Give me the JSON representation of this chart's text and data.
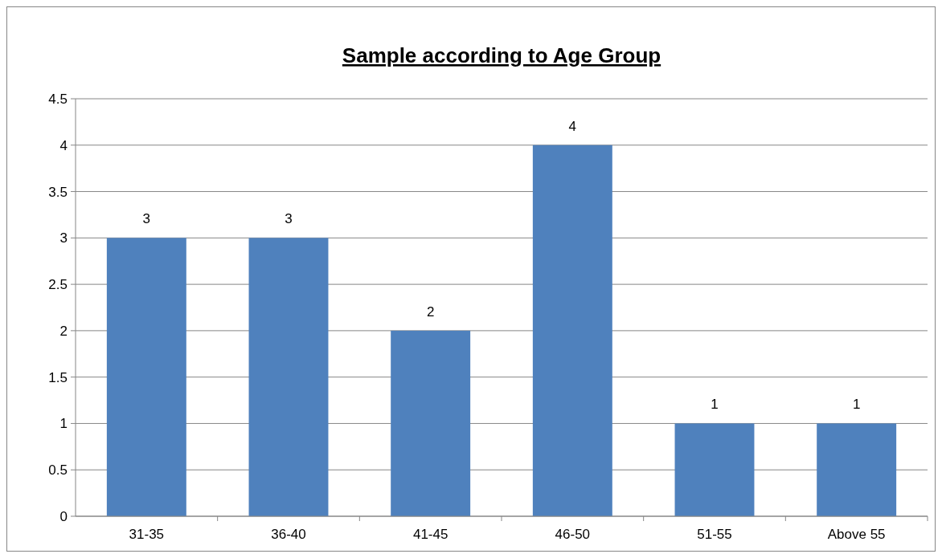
{
  "chart_data": {
    "type": "bar",
    "title": "Sample according to Age Group",
    "categories": [
      "31-35",
      "36-40",
      "41-45",
      "46-50",
      "51-55",
      "Above 55"
    ],
    "values": [
      3,
      3,
      2,
      4,
      1,
      1
    ],
    "color": "#4f81bd",
    "ylim": [
      0,
      4.5
    ],
    "yticks": [
      0,
      0.5,
      1,
      1.5,
      2,
      2.5,
      3,
      3.5,
      4,
      4.5
    ],
    "grid": "y",
    "data_labels": true
  }
}
